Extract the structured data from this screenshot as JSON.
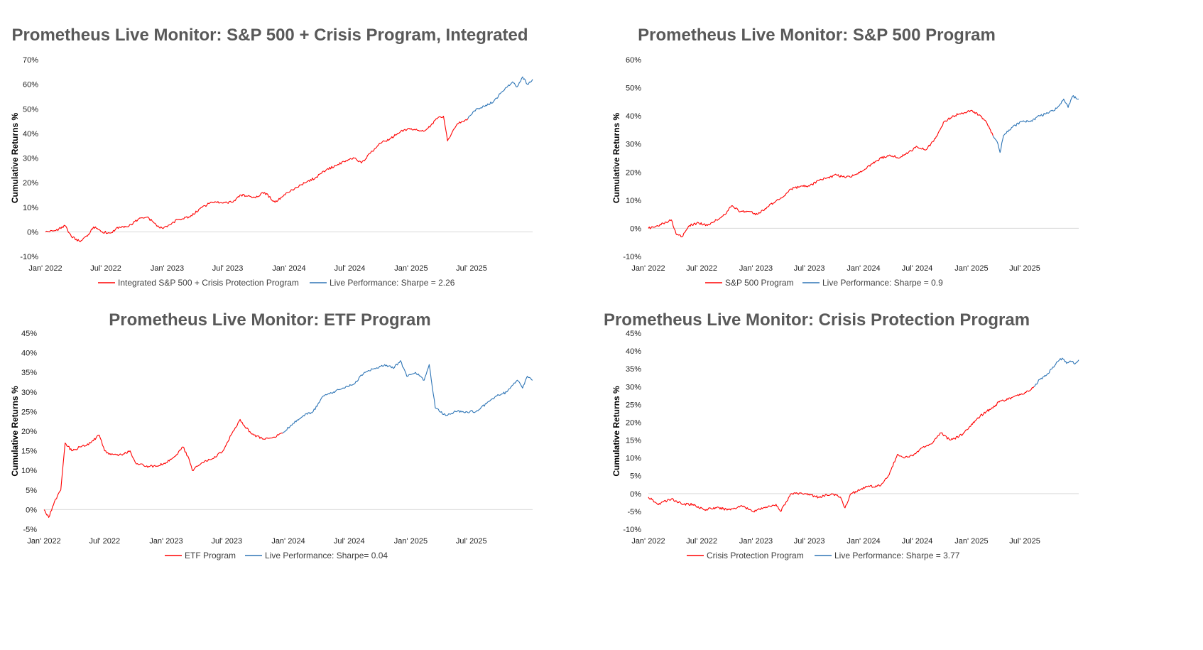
{
  "colors": {
    "history": "#ff0000",
    "live": "#2e75b6",
    "axis": "#d9d9d9",
    "title": "#595959"
  },
  "chart_data": [
    {
      "type": "line",
      "title": "Prometheus Live Monitor: S&P 500 + Crisis Program, Integrated",
      "xlabel": "",
      "ylabel": "Cumulative Returns %",
      "ylim": [
        -10,
        70
      ],
      "yticks": [
        -10,
        0,
        10,
        20,
        30,
        40,
        50,
        60,
        70
      ],
      "ytick_labels": [
        "-10%",
        "0%",
        "10%",
        "20%",
        "30%",
        "40%",
        "50%",
        "60%",
        "70%"
      ],
      "xlim": [
        "2022-01-01",
        "2025-12-31"
      ],
      "xtick_labels": [
        "Jan' 2022",
        "Jul' 2022",
        "Jan' 2023",
        "Jul' 2023",
        "Jan' 2024",
        "Jul' 2024",
        "Jan' 2025",
        "Jul' 2025"
      ],
      "xtick_dates": [
        "2022-01-01",
        "2022-07-01",
        "2023-01-01",
        "2023-07-01",
        "2024-01-01",
        "2024-07-01",
        "2025-01-01",
        "2025-07-01"
      ],
      "legend_position": "bottom",
      "series": [
        {
          "name": "Integrated S&P 500 + Crisis Protection Program",
          "color": "#ff0000",
          "x": [
            "2022-01-01",
            "2022-02-01",
            "2022-03-01",
            "2022-03-20",
            "2022-04-15",
            "2022-05-10",
            "2022-05-25",
            "2022-06-20",
            "2022-07-15",
            "2022-08-10",
            "2022-09-05",
            "2022-10-05",
            "2022-11-01",
            "2022-11-20",
            "2022-12-10",
            "2023-01-01",
            "2023-02-01",
            "2023-03-10",
            "2023-04-15",
            "2023-05-15",
            "2023-06-20",
            "2023-07-15",
            "2023-08-10",
            "2023-09-20",
            "2023-10-20",
            "2023-11-20",
            "2023-12-20",
            "2024-01-20",
            "2024-02-20",
            "2024-03-20",
            "2024-04-20",
            "2024-05-20",
            "2024-06-20",
            "2024-07-15",
            "2024-08-05",
            "2024-09-01",
            "2024-10-01",
            "2024-11-01",
            "2024-12-01",
            "2025-01-01",
            "2025-02-01",
            "2025-02-20",
            "2025-03-20",
            "2025-04-08",
            "2025-04-20",
            "2025-05-20",
            "2025-06-20"
          ],
          "y": [
            0,
            0.5,
            2.5,
            -2,
            -4,
            -1,
            2,
            0,
            -0.5,
            2,
            2,
            5,
            6,
            4,
            1.5,
            2,
            5,
            6,
            10,
            12,
            12,
            12,
            15,
            14,
            16,
            12,
            15,
            18,
            20,
            22,
            25,
            27,
            29,
            30,
            28,
            32,
            36,
            38,
            41,
            42,
            41,
            42,
            46,
            47,
            37,
            44,
            46
          ]
        },
        {
          "name": "Live Performance: Sharpe = 2.26",
          "color": "#2e75b6",
          "x": [
            "2025-06-20",
            "2025-07-15",
            "2025-08-10",
            "2025-09-05",
            "2025-10-01",
            "2025-11-01",
            "2025-11-15",
            "2025-12-01",
            "2025-12-15",
            "2025-12-31"
          ],
          "y": [
            46,
            50,
            51,
            53,
            57,
            61,
            59,
            63,
            60,
            62
          ]
        }
      ]
    },
    {
      "type": "line",
      "title": "Prometheus Live Monitor: S&P 500 Program",
      "xlabel": "",
      "ylabel": "Cumulative Returns %",
      "ylim": [
        -10,
        60
      ],
      "yticks": [
        -10,
        0,
        10,
        20,
        30,
        40,
        50,
        60
      ],
      "ytick_labels": [
        "-10%",
        "0%",
        "10%",
        "20%",
        "30%",
        "40%",
        "50%",
        "60%"
      ],
      "xlim": [
        "2022-01-01",
        "2025-12-31"
      ],
      "xtick_labels": [
        "Jan' 2022",
        "Jul' 2022",
        "Jan' 2023",
        "Jul' 2023",
        "Jan' 2024",
        "Jul' 2024",
        "Jan' 2025",
        "Jul' 2025"
      ],
      "xtick_dates": [
        "2022-01-01",
        "2022-07-01",
        "2023-01-01",
        "2023-07-01",
        "2024-01-01",
        "2024-07-01",
        "2025-01-01",
        "2025-07-01"
      ],
      "legend_position": "bottom",
      "series": [
        {
          "name": "S&P 500 Program",
          "color": "#ff0000",
          "x": [
            "2022-01-01",
            "2022-02-01",
            "2022-03-20",
            "2022-04-05",
            "2022-04-25",
            "2022-05-20",
            "2022-06-20",
            "2022-07-20",
            "2022-08-20",
            "2022-09-20",
            "2022-10-10",
            "2022-11-10",
            "2022-12-10",
            "2023-01-05",
            "2023-02-01",
            "2023-03-01",
            "2023-04-01",
            "2023-05-01",
            "2023-06-01",
            "2023-07-01",
            "2023-08-01",
            "2023-09-01",
            "2023-10-01",
            "2023-11-01",
            "2023-12-01",
            "2024-01-05",
            "2024-02-01",
            "2024-03-01",
            "2024-04-01",
            "2024-05-01",
            "2024-06-01",
            "2024-07-01",
            "2024-08-01",
            "2024-09-01",
            "2024-10-01",
            "2024-11-01",
            "2024-12-01",
            "2025-01-01",
            "2025-02-01",
            "2025-02-20",
            "2025-03-15"
          ],
          "y": [
            0,
            1,
            3,
            -2,
            -3,
            1,
            2,
            1,
            3,
            5,
            8,
            6,
            6,
            5,
            7,
            9,
            11,
            14,
            15,
            15,
            17,
            18,
            19,
            18,
            19,
            21,
            23,
            25,
            26,
            25,
            27,
            29,
            28,
            32,
            38,
            40,
            41,
            42,
            40,
            38,
            33
          ]
        },
        {
          "name": "Live Performance: Sharpe = 0.9",
          "color": "#2e75b6",
          "x": [
            "2025-03-15",
            "2025-04-01",
            "2025-04-08",
            "2025-04-20",
            "2025-05-20",
            "2025-06-20",
            "2025-07-20",
            "2025-08-20",
            "2025-09-20",
            "2025-10-20",
            "2025-11-10",
            "2025-11-25",
            "2025-12-10",
            "2025-12-31"
          ],
          "y": [
            33,
            30,
            27,
            33,
            36,
            38,
            38,
            40,
            41,
            43,
            46,
            43,
            47,
            46
          ]
        }
      ]
    },
    {
      "type": "line",
      "title": "Prometheus Live Monitor: ETF Program",
      "xlabel": "",
      "ylabel": "Cumulative Returns %",
      "ylim": [
        -5,
        45
      ],
      "yticks": [
        -5,
        0,
        5,
        10,
        15,
        20,
        25,
        30,
        35,
        40,
        45
      ],
      "ytick_labels": [
        "-5%",
        "0%",
        "5%",
        "10%",
        "15%",
        "20%",
        "25%",
        "30%",
        "35%",
        "40%",
        "45%"
      ],
      "xlim": [
        "2022-01-01",
        "2025-12-31"
      ],
      "xtick_labels": [
        "Jan' 2022",
        "Jul' 2022",
        "Jan' 2023",
        "Jul' 2023",
        "Jan' 2024",
        "Jul' 2024",
        "Jan' 2025",
        "Jul' 2025"
      ],
      "xtick_dates": [
        "2022-01-01",
        "2022-07-01",
        "2023-01-01",
        "2023-07-01",
        "2024-01-01",
        "2024-07-01",
        "2025-01-01",
        "2025-07-01"
      ],
      "legend_position": "bottom",
      "series": [
        {
          "name": "ETF Program",
          "color": "#ff0000",
          "x": [
            "2022-01-01",
            "2022-01-15",
            "2022-02-01",
            "2022-02-20",
            "2022-03-05",
            "2022-03-25",
            "2022-04-20",
            "2022-05-20",
            "2022-06-15",
            "2022-07-01",
            "2022-07-20",
            "2022-08-20",
            "2022-09-15",
            "2022-10-01",
            "2022-11-01",
            "2022-12-01",
            "2023-01-01",
            "2023-02-01",
            "2023-02-20",
            "2023-03-10",
            "2023-03-20",
            "2023-04-20",
            "2023-05-20",
            "2023-06-20",
            "2023-07-20",
            "2023-08-10",
            "2023-08-25",
            "2023-09-20",
            "2023-10-20",
            "2023-11-20",
            "2023-12-15"
          ],
          "y": [
            0,
            -2,
            2,
            5,
            17,
            15,
            16,
            17,
            19,
            15,
            14,
            14,
            15,
            12,
            11,
            11,
            12,
            14,
            16,
            13,
            10,
            12,
            13,
            15,
            20,
            23,
            21,
            19,
            18,
            18.5,
            19.5
          ]
        },
        {
          "name": "Live Performance: Sharpe= 0.04",
          "color": "#2e75b6",
          "x": [
            "2023-12-15",
            "2024-01-15",
            "2024-02-15",
            "2024-03-15",
            "2024-04-15",
            "2024-05-15",
            "2024-06-15",
            "2024-07-15",
            "2024-08-15",
            "2024-09-15",
            "2024-10-15",
            "2024-11-10",
            "2024-12-01",
            "2024-12-20",
            "2025-01-15",
            "2025-02-10",
            "2025-02-25",
            "2025-03-15",
            "2025-04-15",
            "2025-05-15",
            "2025-06-15",
            "2025-07-15",
            "2025-08-15",
            "2025-09-15",
            "2025-10-15",
            "2025-11-15",
            "2025-12-01",
            "2025-12-15",
            "2025-12-31"
          ],
          "y": [
            19.5,
            22,
            24,
            25,
            29,
            30,
            31,
            32,
            35,
            36,
            37,
            36,
            38,
            34,
            35,
            33,
            37,
            26,
            24,
            25,
            25,
            25,
            27,
            29,
            30,
            33,
            31,
            34,
            33
          ]
        }
      ]
    },
    {
      "type": "line",
      "title": "Prometheus Live Monitor: Crisis Protection Program",
      "xlabel": "",
      "ylabel": "Cumulative Returns %",
      "ylim": [
        -10,
        45
      ],
      "yticks": [
        -10,
        -5,
        0,
        5,
        10,
        15,
        20,
        25,
        30,
        35,
        40,
        45
      ],
      "ytick_labels": [
        "-10%",
        "-5%",
        "0%",
        "5%",
        "10%",
        "15%",
        "20%",
        "25%",
        "30%",
        "35%",
        "40%",
        "45%"
      ],
      "xlim": [
        "2022-01-01",
        "2025-12-31"
      ],
      "xtick_labels": [
        "Jan' 2022",
        "Jul' 2022",
        "Jan' 2023",
        "Jul' 2023",
        "Jan' 2024",
        "Jul' 2024",
        "Jan' 2025",
        "Jul' 2025"
      ],
      "xtick_dates": [
        "2022-01-01",
        "2022-07-01",
        "2023-01-01",
        "2023-07-01",
        "2024-01-01",
        "2024-07-01",
        "2025-01-01",
        "2025-07-01"
      ],
      "legend_position": "bottom",
      "series": [
        {
          "name": "Crisis Protection Program",
          "color": "#ff0000",
          "x": [
            "2022-01-01",
            "2022-02-01",
            "2022-03-20",
            "2022-05-01",
            "2022-06-01",
            "2022-07-10",
            "2022-08-20",
            "2022-10-01",
            "2022-11-15",
            "2022-12-20",
            "2023-02-01",
            "2023-03-10",
            "2023-03-25",
            "2023-05-01",
            "2023-06-15",
            "2023-08-01",
            "2023-09-15",
            "2023-10-15",
            "2023-10-30",
            "2023-11-20",
            "2023-12-20",
            "2024-01-15",
            "2024-02-15",
            "2024-03-01",
            "2024-03-25",
            "2024-04-25",
            "2024-05-20",
            "2024-06-20",
            "2024-07-20",
            "2024-08-20",
            "2024-09-20",
            "2024-10-20",
            "2024-11-20",
            "2024-12-20",
            "2025-01-20",
            "2025-02-20",
            "2025-03-15",
            "2025-04-08",
            "2025-04-20",
            "2025-05-20",
            "2025-06-20",
            "2025-07-20",
            "2025-08-01"
          ],
          "y": [
            -1,
            -3,
            -1.5,
            -3,
            -3,
            -4.5,
            -4,
            -4.5,
            -3.5,
            -5,
            -4,
            -3,
            -5,
            0,
            0,
            -1,
            0,
            -1,
            -4,
            0,
            1,
            2,
            2,
            2.5,
            5,
            11,
            10,
            11,
            13,
            14,
            17,
            15,
            16,
            18,
            21,
            23,
            24,
            26,
            26,
            27,
            28,
            29,
            30
          ]
        },
        {
          "name": "Live Performance: Sharpe = 3.77",
          "color": "#2e75b6",
          "x": [
            "2025-08-01",
            "2025-08-20",
            "2025-09-10",
            "2025-10-01",
            "2025-10-20",
            "2025-11-05",
            "2025-11-20",
            "2025-12-05",
            "2025-12-20",
            "2025-12-31"
          ],
          "y": [
            30,
            32,
            33,
            35,
            37,
            38,
            36.5,
            37,
            36.5,
            37.5
          ]
        }
      ]
    }
  ]
}
